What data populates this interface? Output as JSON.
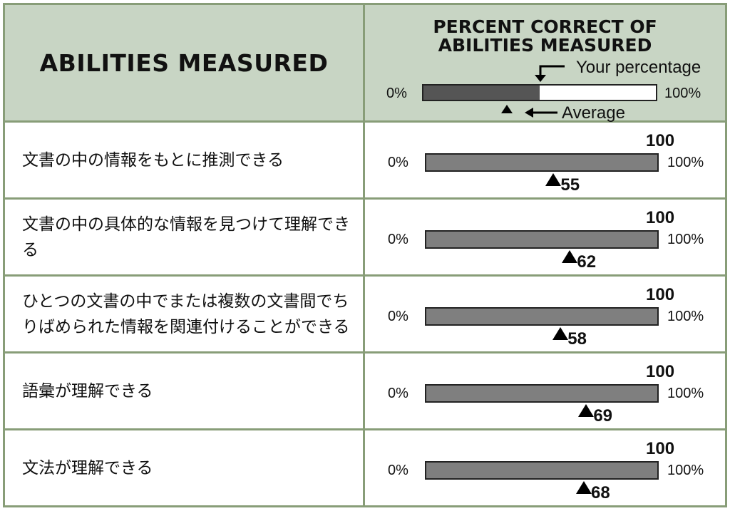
{
  "header": {
    "abilities_title": "ABILITIES MEASURED",
    "percent_title_line1": "PERCENT CORRECT OF",
    "percent_title_line2": "ABILITIES MEASURED",
    "legend_your_percentage": "Your percentage",
    "legend_average": "Average",
    "legend_min": "0%",
    "legend_max": "100%",
    "legend_your_fraction": 0.5,
    "legend_average_fraction": 0.36
  },
  "chart_data": {
    "type": "bar",
    "title": "PERCENT CORRECT OF ABILITIES MEASURED",
    "xlim": [
      0,
      100
    ],
    "rows": [
      {
        "ability": "文書の中の情報をもとに推測できる",
        "your_percentage": 100,
        "average": 55
      },
      {
        "ability": "文書の中の具体的な情報を見つけて理解できる",
        "your_percentage": 100,
        "average": 62
      },
      {
        "ability": "ひとつの文書の中でまたは複数の文書間でちりばめられた情報を関連付けることができる",
        "your_percentage": 100,
        "average": 58
      },
      {
        "ability": "語彙が理解できる",
        "your_percentage": 100,
        "average": 69
      },
      {
        "ability": "文法が理解できる",
        "your_percentage": 100,
        "average": 68
      }
    ],
    "axis_min_label": "0%",
    "axis_max_label": "100%"
  }
}
